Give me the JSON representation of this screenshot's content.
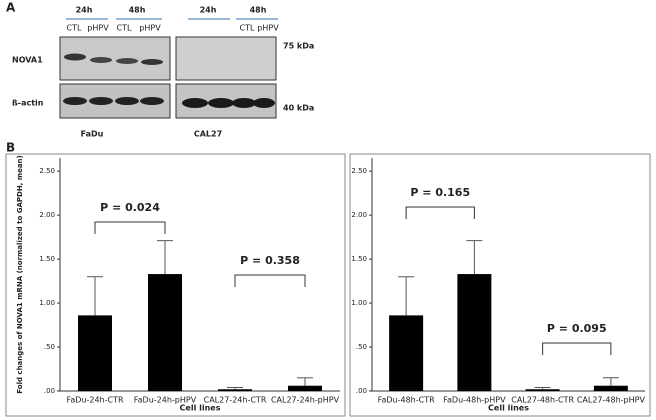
{
  "panel_a": {
    "label": "A",
    "fadu_times": [
      "24h",
      "48h"
    ],
    "fadu_lanes": [
      "CTL",
      "pHPV",
      "CTL",
      "pHPV"
    ],
    "cal27_times": [
      "24h",
      "48h"
    ],
    "cal27_lanes": [
      "CTL",
      "pHPV"
    ],
    "rows": [
      "NOVA1",
      "ß-actin"
    ],
    "sizes": [
      "75 kDa",
      "40 kDa"
    ],
    "cell_lines": [
      "FaDu",
      "CAL27"
    ]
  },
  "panel_b": {
    "label": "B"
  },
  "chart_data": [
    {
      "type": "bar",
      "y_label": "Fold changes of NOVA1 mRNA (normalized to GAPDH, mean)",
      "x_label": "Cell lines",
      "categories": [
        "FaDu-24h-CTR",
        "FaDu-24h-pHPV",
        "CAL27-24h-CTR",
        "CAL27-24h-pHPV"
      ],
      "values": [
        0.86,
        1.33,
        0.02,
        0.06
      ],
      "errors": [
        0.44,
        0.38,
        0.02,
        0.09
      ],
      "color": "#000000",
      "ylim": [
        0,
        2.65
      ],
      "yticks": [
        {
          "value": 0,
          "label": ".00"
        },
        {
          "value": 0.5,
          "label": ".50"
        },
        {
          "value": 1,
          "label": "1.00"
        },
        {
          "value": 1.5,
          "label": "1.50"
        },
        {
          "value": 2,
          "label": "2.00"
        },
        {
          "value": 2.5,
          "label": "2.50"
        }
      ],
      "annotations": [
        "P = 0.024",
        "P = 0.358"
      ]
    },
    {
      "type": "bar",
      "x_label": "Cell lines",
      "categories": [
        "FaDu-48h-CTR",
        "FaDu-48h-pHPV",
        "CAL27-48h-CTR",
        "CAL27-48h-pHPV"
      ],
      "values": [
        0.86,
        1.33,
        0.02,
        0.06
      ],
      "errors": [
        0.44,
        0.38,
        0.02,
        0.09
      ],
      "color": "#000000",
      "ylim": [
        0,
        2.65
      ],
      "yticks": [
        {
          "value": 0,
          "label": ".00"
        },
        {
          "value": 0.5,
          "label": ".50"
        },
        {
          "value": 1,
          "label": "1.00"
        },
        {
          "value": 1.5,
          "label": "1.50"
        },
        {
          "value": 2,
          "label": "2.00"
        },
        {
          "value": 2.5,
          "label": "2.50"
        }
      ],
      "annotations": [
        "P = 0.165",
        "P = 0.095"
      ]
    }
  ]
}
